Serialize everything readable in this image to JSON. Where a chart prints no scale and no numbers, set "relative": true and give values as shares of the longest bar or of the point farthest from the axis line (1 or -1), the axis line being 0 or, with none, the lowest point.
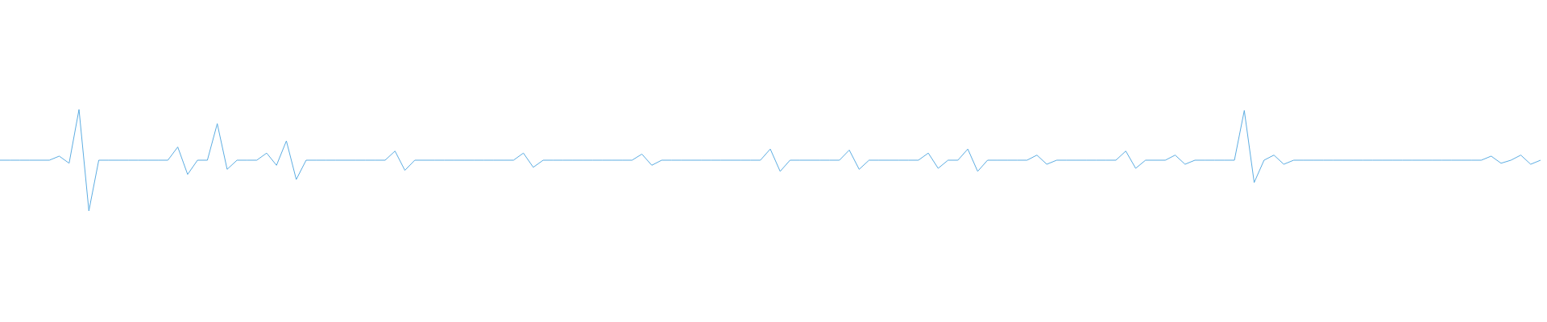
{
  "chart_data": {
    "type": "line",
    "relative": true,
    "color": "#5dade2",
    "marker": "none",
    "categories": [
      null,
      null,
      null,
      null,
      null,
      null,
      null,
      null,
      null,
      null,
      null,
      null,
      null,
      null,
      null,
      null,
      null,
      null,
      null,
      null,
      null,
      null,
      null,
      null,
      null,
      null,
      null,
      null,
      null,
      null,
      null,
      null,
      null,
      null,
      null,
      null,
      null,
      null,
      null,
      null,
      null,
      null,
      null,
      null,
      null,
      null,
      null,
      null,
      null,
      null,
      null,
      null,
      null,
      null,
      null,
      null,
      null,
      null,
      null,
      null,
      null,
      null,
      null,
      null,
      null,
      null,
      null,
      null,
      null,
      null,
      null,
      null,
      null,
      null,
      null,
      null,
      null,
      null,
      null,
      null,
      null,
      null,
      null,
      null,
      null,
      null,
      null,
      null,
      null,
      null,
      null,
      null,
      null,
      null,
      null,
      null,
      null,
      null,
      null,
      null,
      null,
      null,
      null,
      null,
      null,
      null,
      null,
      null,
      null,
      null,
      null,
      null,
      null,
      null,
      null,
      null,
      null,
      null,
      null,
      null,
      null,
      null,
      null,
      null,
      null,
      null,
      null,
      null,
      null,
      null,
      null,
      null,
      null,
      null,
      null,
      null,
      null,
      null,
      null,
      null,
      null,
      null,
      null,
      null,
      null,
      null,
      null,
      null,
      null,
      null,
      null,
      null,
      null,
      null,
      null,
      null,
      null
    ],
    "values": [
      0.5,
      0.5,
      0.5,
      0.5,
      0.5,
      0.5,
      0.54,
      0.47,
      1,
      0,
      0.5,
      0.5,
      0.5,
      0.5,
      0.5,
      0.5,
      0.5,
      0.5,
      0.63,
      0.36,
      0.5,
      0.5,
      0.86,
      0.41,
      0.5,
      0.5,
      0.5,
      0.57,
      0.45,
      0.69,
      0.31,
      0.5,
      0.5,
      0.5,
      0.5,
      0.5,
      0.5,
      0.5,
      0.5,
      0.5,
      0.59,
      0.4,
      0.5,
      0.5,
      0.5,
      0.5,
      0.5,
      0.5,
      0.5,
      0.5,
      0.5,
      0.5,
      0.5,
      0.57,
      0.43,
      0.5,
      0.5,
      0.5,
      0.5,
      0.5,
      0.5,
      0.5,
      0.5,
      0.5,
      0.5,
      0.56,
      0.45,
      0.5,
      0.5,
      0.5,
      0.5,
      0.5,
      0.5,
      0.5,
      0.5,
      0.5,
      0.5,
      0.5,
      0.61,
      0.39,
      0.5,
      0.5,
      0.5,
      0.5,
      0.5,
      0.5,
      0.6,
      0.41,
      0.5,
      0.5,
      0.5,
      0.5,
      0.5,
      0.5,
      0.57,
      0.42,
      0.5,
      0.5,
      0.61,
      0.39,
      0.5,
      0.5,
      0.5,
      0.5,
      0.5,
      0.55,
      0.46,
      0.5,
      0.5,
      0.5,
      0.5,
      0.5,
      0.5,
      0.5,
      0.59,
      0.42,
      0.5,
      0.5,
      0.5,
      0.55,
      0.46,
      0.5,
      0.5,
      0.5,
      0.5,
      0.5,
      0.99,
      0.28,
      0.5,
      0.55,
      0.46,
      0.5,
      0.5,
      0.5,
      0.5,
      0.5,
      0.5,
      0.5,
      0.5,
      0.5,
      0.5,
      0.5,
      0.5,
      0.5,
      0.5,
      0.5,
      0.5,
      0.5,
      0.5,
      0.5,
      0.5,
      0.54,
      0.47,
      0.5,
      0.55,
      0.46,
      0.5
    ]
  }
}
